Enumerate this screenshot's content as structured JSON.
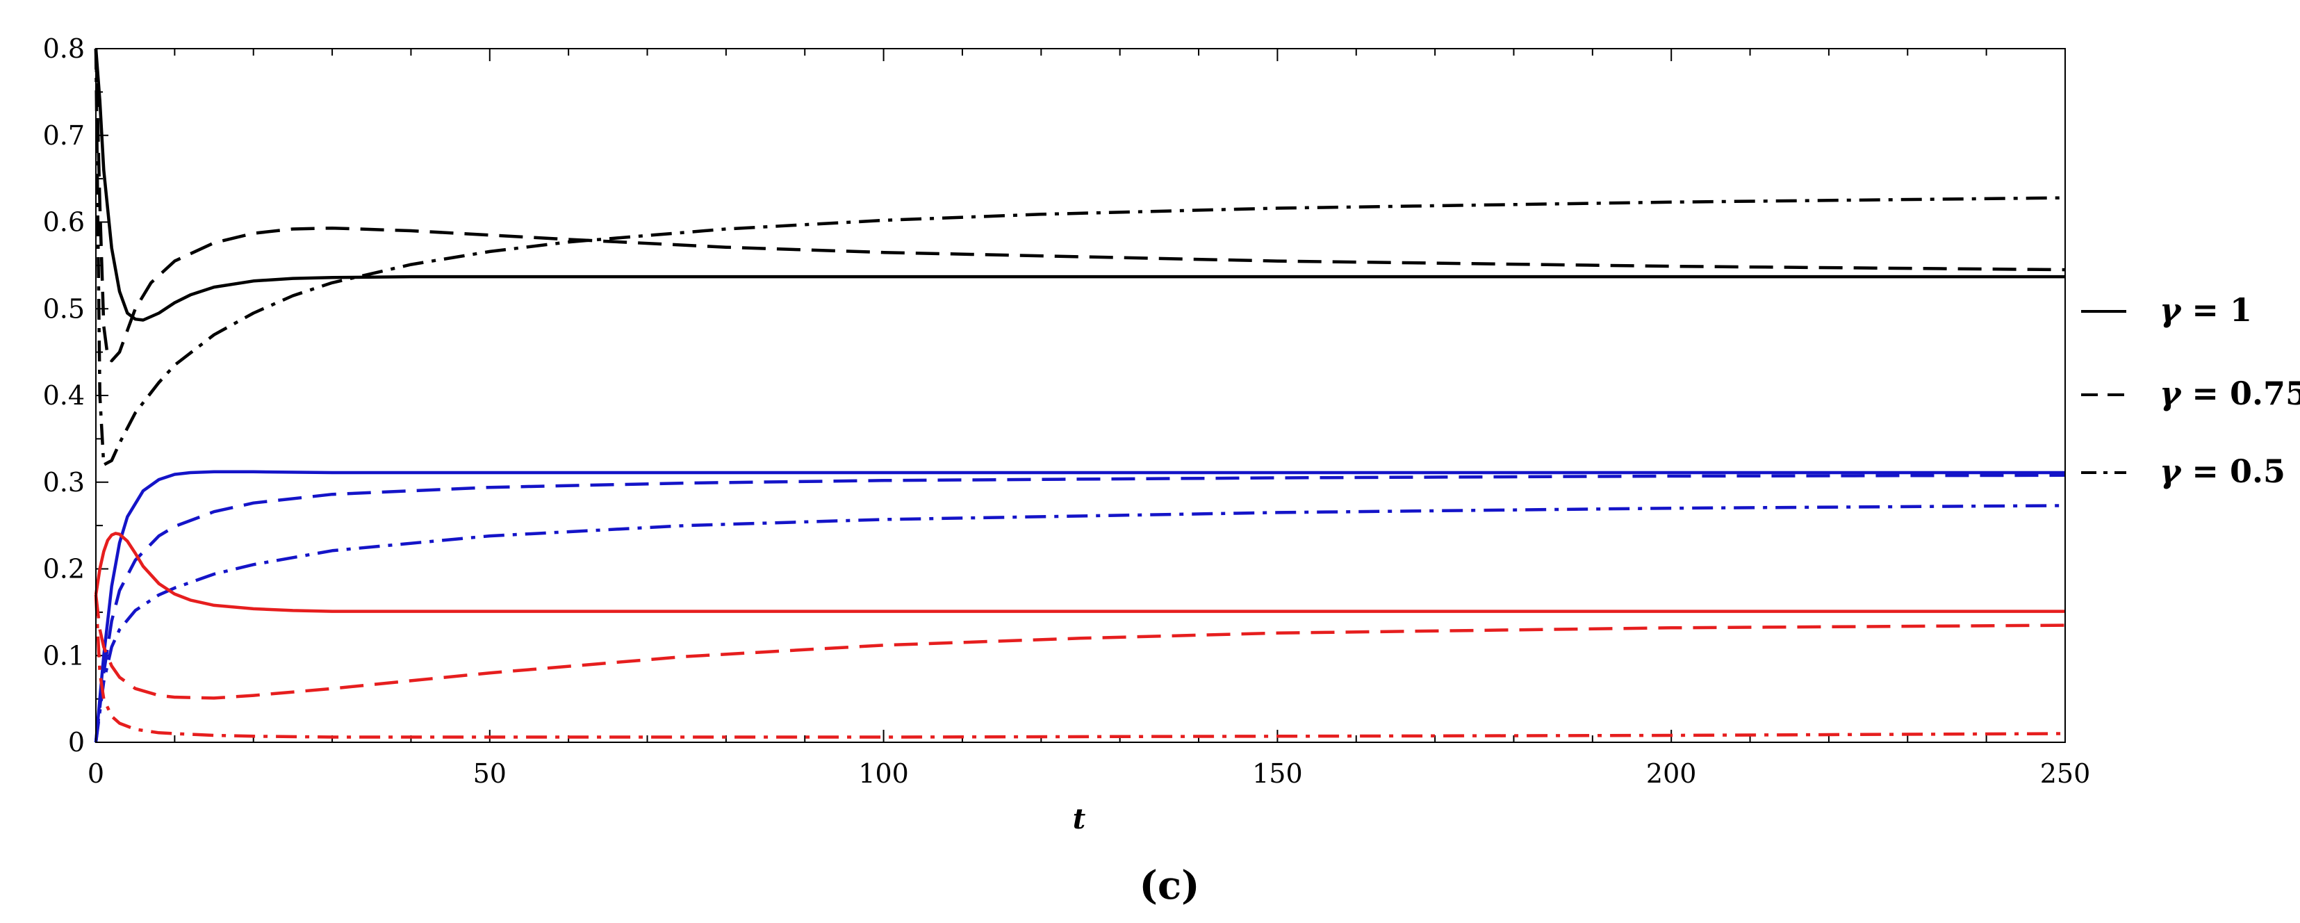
{
  "chart_data": {
    "type": "line",
    "panel_label": "(c)",
    "title": "",
    "xlabel": "t",
    "ylabel": "",
    "xlim": [
      0,
      250
    ],
    "ylim": [
      0,
      0.8
    ],
    "x_ticks": [
      "0",
      "50",
      "100",
      "150",
      "200",
      "250"
    ],
    "y_ticks": [
      "0",
      "0.1",
      "0.2",
      "0.3",
      "0.4",
      "0.5",
      "0.6",
      "0.7",
      "0.8"
    ],
    "legend_position": "right",
    "legend": [
      {
        "style": "solid",
        "symbol": "γ",
        "text": " = 1"
      },
      {
        "style": "dashed",
        "symbol": "γ",
        "text": " = 0.75"
      },
      {
        "style": "dashdot",
        "symbol": "γ",
        "text": " = 0.5"
      }
    ],
    "colors": {
      "black": "#000000",
      "blue": "#1414c8",
      "red": "#e61e1e"
    },
    "series": [
      {
        "name": "black γ = 1",
        "color": "black",
        "style": "solid",
        "x": [
          0,
          0.5,
          1,
          2,
          3,
          4,
          5,
          6,
          8,
          10,
          12,
          15,
          20,
          25,
          30,
          40,
          50,
          100,
          150,
          200,
          250
        ],
        "y": [
          0.8,
          0.74,
          0.66,
          0.57,
          0.52,
          0.495,
          0.488,
          0.487,
          0.495,
          0.507,
          0.516,
          0.525,
          0.532,
          0.535,
          0.536,
          0.537,
          0.537,
          0.537,
          0.537,
          0.537,
          0.537
        ]
      },
      {
        "name": "black γ = 0.75",
        "color": "black",
        "style": "dashed",
        "x": [
          0,
          0.5,
          1,
          1.5,
          2,
          3,
          4,
          5,
          7,
          10,
          15,
          20,
          25,
          30,
          40,
          50,
          60,
          80,
          100,
          150,
          200,
          250
        ],
        "y": [
          0.8,
          0.62,
          0.48,
          0.445,
          0.44,
          0.45,
          0.475,
          0.5,
          0.53,
          0.555,
          0.576,
          0.587,
          0.592,
          0.593,
          0.59,
          0.585,
          0.58,
          0.571,
          0.565,
          0.555,
          0.549,
          0.545
        ]
      },
      {
        "name": "black γ = 0.5",
        "color": "black",
        "style": "dashdot",
        "x": [
          0,
          0.5,
          1,
          2,
          3,
          5,
          8,
          10,
          15,
          20,
          25,
          30,
          40,
          50,
          60,
          80,
          100,
          120,
          150,
          200,
          250
        ],
        "y": [
          0.8,
          0.4,
          0.32,
          0.325,
          0.345,
          0.38,
          0.415,
          0.435,
          0.47,
          0.495,
          0.515,
          0.53,
          0.551,
          0.566,
          0.577,
          0.592,
          0.602,
          0.609,
          0.616,
          0.623,
          0.628
        ]
      },
      {
        "name": "blue γ = 1",
        "color": "blue",
        "style": "solid",
        "x": [
          0,
          1,
          2,
          3,
          4,
          6,
          8,
          10,
          12,
          15,
          20,
          30,
          50,
          100,
          150,
          200,
          250
        ],
        "y": [
          0,
          0.1,
          0.18,
          0.23,
          0.26,
          0.29,
          0.303,
          0.309,
          0.311,
          0.312,
          0.312,
          0.311,
          0.311,
          0.311,
          0.311,
          0.311,
          0.311
        ]
      },
      {
        "name": "blue γ = 0.75",
        "color": "blue",
        "style": "dashed",
        "x": [
          0,
          1,
          2,
          3,
          5,
          8,
          10,
          15,
          20,
          30,
          50,
          75,
          100,
          150,
          200,
          250
        ],
        "y": [
          0,
          0.08,
          0.14,
          0.175,
          0.21,
          0.238,
          0.249,
          0.266,
          0.276,
          0.286,
          0.294,
          0.299,
          0.302,
          0.305,
          0.307,
          0.308
        ]
      },
      {
        "name": "blue γ = 0.5",
        "color": "blue",
        "style": "dashdot",
        "x": [
          0,
          1,
          2,
          3,
          5,
          8,
          10,
          15,
          20,
          30,
          50,
          75,
          100,
          150,
          200,
          250
        ],
        "y": [
          0,
          0.07,
          0.11,
          0.13,
          0.152,
          0.17,
          0.178,
          0.194,
          0.205,
          0.221,
          0.238,
          0.25,
          0.257,
          0.265,
          0.27,
          0.273
        ]
      },
      {
        "name": "red γ = 1",
        "color": "red",
        "style": "solid",
        "x": [
          0,
          0.5,
          1,
          1.5,
          2,
          2.5,
          3,
          4,
          5,
          6,
          8,
          10,
          12,
          15,
          20,
          25,
          30,
          40,
          50,
          100,
          150,
          200,
          250
        ],
        "y": [
          0.17,
          0.2,
          0.22,
          0.233,
          0.239,
          0.241,
          0.24,
          0.232,
          0.218,
          0.203,
          0.183,
          0.171,
          0.164,
          0.158,
          0.154,
          0.152,
          0.151,
          0.151,
          0.151,
          0.151,
          0.151,
          0.151,
          0.151
        ]
      },
      {
        "name": "red γ = 0.75",
        "color": "red",
        "style": "dashed",
        "x": [
          0,
          0.5,
          1,
          2,
          3,
          5,
          8,
          10,
          15,
          20,
          30,
          40,
          50,
          75,
          100,
          125,
          150,
          200,
          250
        ],
        "y": [
          0.17,
          0.13,
          0.11,
          0.088,
          0.075,
          0.062,
          0.054,
          0.052,
          0.051,
          0.054,
          0.062,
          0.071,
          0.08,
          0.099,
          0.112,
          0.12,
          0.126,
          0.132,
          0.135
        ]
      },
      {
        "name": "red γ = 0.5",
        "color": "red",
        "style": "dashdot",
        "x": [
          0,
          0.5,
          1,
          2,
          3,
          5,
          8,
          10,
          15,
          20,
          30,
          50,
          100,
          150,
          200,
          250
        ],
        "y": [
          0.17,
          0.08,
          0.05,
          0.03,
          0.022,
          0.015,
          0.011,
          0.01,
          0.008,
          0.007,
          0.006,
          0.006,
          0.006,
          0.007,
          0.008,
          0.01
        ]
      }
    ]
  }
}
